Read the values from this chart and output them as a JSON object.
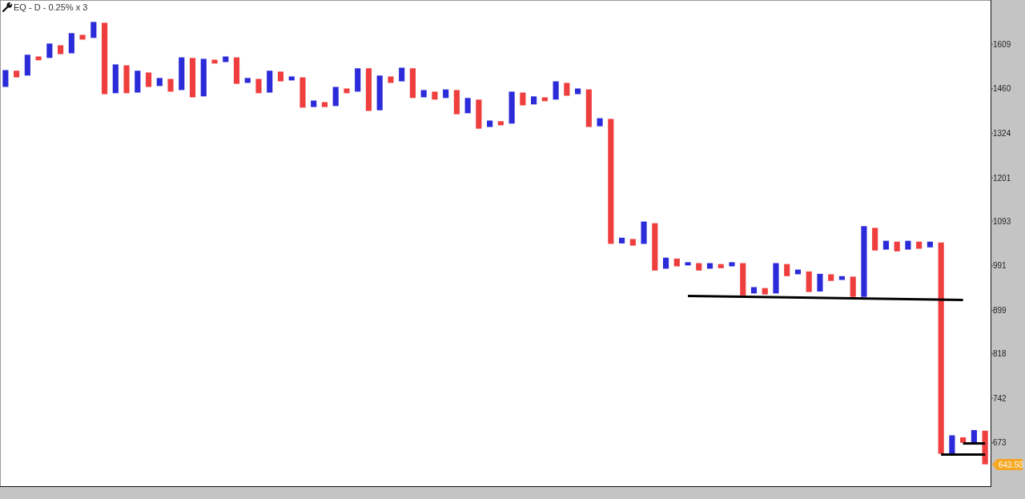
{
  "chart_data": {
    "type": "bar",
    "title": "EQ - D - 0.25% x 3",
    "categories": [
      null,
      null,
      null,
      null,
      null,
      null,
      null,
      null,
      null,
      null,
      null,
      null,
      null,
      null,
      null,
      null,
      null,
      null,
      null,
      null,
      null,
      null,
      null,
      null,
      null,
      null,
      null,
      null,
      null,
      null,
      null,
      null,
      null,
      null,
      null,
      null,
      null,
      null,
      null,
      null,
      null,
      null,
      null,
      null,
      null,
      null,
      null,
      null,
      null,
      null,
      null,
      null,
      null,
      null,
      null,
      null,
      null,
      null,
      null,
      null,
      null,
      null,
      null,
      null,
      null,
      null,
      null,
      null,
      null,
      null,
      null,
      null,
      null,
      null,
      null,
      null,
      null,
      null,
      null,
      null,
      null,
      null,
      null,
      null,
      null,
      null,
      null,
      null,
      null,
      null
    ],
    "series": [
      {
        "values": [
          55,
          22,
          70,
          13,
          50,
          31,
          71,
          17,
          58,
          244,
          94,
          91,
          71,
          47,
          26,
          41,
          108,
          129,
          123,
          13,
          19,
          88,
          16,
          46,
          71,
          32,
          13,
          96,
          20,
          15,
          60,
          15,
          76,
          136,
          110,
          21,
          45,
          96,
          23,
          25,
          27,
          75,
          47,
          88,
          19,
          12,
          98,
          40,
          25,
          12,
          58,
          41,
          18,
          115,
          24,
          327,
          13,
          15,
          52,
          107,
          24,
          17,
          7,
          16,
          12,
          9,
          9,
          68,
          13,
          13,
          64,
          26,
          10,
          43,
          37,
          14,
          8,
          42,
          155,
          52,
          20,
          22,
          20,
          16,
          13,
          386,
          27,
          8,
          19,
          49
        ],
        "base": [
          1466,
          1497,
          1503,
          1554,
          1562,
          1575,
          1578,
          1626,
          1632,
          1443,
          1446,
          1446,
          1448,
          1466,
          1469,
          1451,
          1456,
          1433,
          1436,
          1543,
          1548,
          1476,
          1479,
          1446,
          1448,
          1484,
          1487,
          1401,
          1403,
          1403,
          1406,
          1446,
          1451,
          1391,
          1393,
          1479,
          1484,
          1431,
          1433,
          1426,
          1431,
          1381,
          1384,
          1338,
          1343,
          1348,
          1353,
          1408,
          1411,
          1421,
          1426,
          1438,
          1443,
          1343,
          1345,
          1040,
          1041,
          1036,
          1040,
          981,
          985,
          990,
          992,
          981,
          985,
          986,
          990,
          929,
          933,
          931,
          933,
          969,
          973,
          936,
          937,
          959,
          961,
          926,
          926,
          1025,
          1027,
          1023,
          1027,
          1029,
          1032,
          657,
          657,
          673,
          673,
          642
        ],
        "colors": [
          "#2b2bd9",
          "#ef3e3e",
          "#2b2bd9",
          "#ef3e3e",
          "#2b2bd9",
          "#ef3e3e",
          "#2b2bd9",
          "#ef3e3e",
          "#2b2bd9",
          "#ef3e3e",
          "#2b2bd9",
          "#ef3e3e",
          "#2b2bd9",
          "#ef3e3e",
          "#2b2bd9",
          "#ef3e3e",
          "#2b2bd9",
          "#ef3e3e",
          "#2b2bd9",
          "#ef3e3e",
          "#2b2bd9",
          "#ef3e3e",
          "#2b2bd9",
          "#ef3e3e",
          "#2b2bd9",
          "#ef3e3e",
          "#2b2bd9",
          "#ef3e3e",
          "#2b2bd9",
          "#ef3e3e",
          "#2b2bd9",
          "#ef3e3e",
          "#2b2bd9",
          "#ef3e3e",
          "#2b2bd9",
          "#ef3e3e",
          "#2b2bd9",
          "#ef3e3e",
          "#2b2bd9",
          "#ef3e3e",
          "#2b2bd9",
          "#ef3e3e",
          "#2b2bd9",
          "#ef3e3e",
          "#2b2bd9",
          "#ef3e3e",
          "#2b2bd9",
          "#ef3e3e",
          "#2b2bd9",
          "#ef3e3e",
          "#2b2bd9",
          "#ef3e3e",
          "#2b2bd9",
          "#ef3e3e",
          "#2b2bd9",
          "#ef3e3e",
          "#2b2bd9",
          "#ef3e3e",
          "#2b2bd9",
          "#ef3e3e",
          "#2b2bd9",
          "#ef3e3e",
          "#2b2bd9",
          "#ef3e3e",
          "#2b2bd9",
          "#ef3e3e",
          "#2b2bd9",
          "#ef3e3e",
          "#2b2bd9",
          "#ef3e3e",
          "#2b2bd9",
          "#ef3e3e",
          "#2b2bd9",
          "#ef3e3e",
          "#2b2bd9",
          "#ef3e3e",
          "#2b2bd9",
          "#ef3e3e",
          "#2b2bd9",
          "#ef3e3e",
          "#2b2bd9",
          "#ef3e3e",
          "#2b2bd9",
          "#ef3e3e",
          "#2b2bd9",
          "#ef3e3e",
          "#2b2bd9",
          "#ef3e3e",
          "#2b2bd9",
          "#ef3e3e"
        ]
      },
      {
        "type": "line",
        "color": "#000000",
        "values": [
          null,
          null,
          null,
          null,
          null,
          null,
          null,
          null,
          null,
          null,
          null,
          null,
          null,
          null,
          null,
          null,
          null,
          null,
          null,
          null,
          null,
          null,
          null,
          null,
          null,
          null,
          null,
          null,
          null,
          null,
          null,
          null,
          null,
          null,
          null,
          null,
          null,
          null,
          null,
          null,
          null,
          null,
          null,
          null,
          null,
          null,
          null,
          null,
          null,
          null,
          null,
          null,
          null,
          null,
          null,
          null,
          null,
          null,
          null,
          null,
          null,
          null,
          928,
          null,
          null,
          null,
          null,
          null,
          null,
          null,
          null,
          null,
          null,
          null,
          null,
          null,
          null,
          null,
          null,
          null,
          null,
          null,
          null,
          null,
          null,
          null,
          null,
          920,
          null,
          null
        ]
      },
      {
        "type": "line",
        "color": "#000000",
        "values": [
          null,
          null,
          null,
          null,
          null,
          null,
          null,
          null,
          null,
          null,
          null,
          null,
          null,
          null,
          null,
          null,
          null,
          null,
          null,
          null,
          null,
          null,
          null,
          null,
          null,
          null,
          null,
          null,
          null,
          null,
          null,
          null,
          null,
          null,
          null,
          null,
          null,
          null,
          null,
          null,
          null,
          null,
          null,
          null,
          null,
          null,
          null,
          null,
          null,
          null,
          null,
          null,
          null,
          null,
          null,
          null,
          null,
          null,
          null,
          null,
          null,
          null,
          null,
          null,
          null,
          null,
          null,
          null,
          null,
          null,
          null,
          null,
          null,
          null,
          null,
          null,
          null,
          null,
          null,
          null,
          null,
          null,
          null,
          null,
          null,
          656,
          null,
          null,
          null,
          656
        ]
      },
      {
        "type": "line",
        "color": "#000000",
        "values": [
          null,
          null,
          null,
          null,
          null,
          null,
          null,
          null,
          null,
          null,
          null,
          null,
          null,
          null,
          null,
          null,
          null,
          null,
          null,
          null,
          null,
          null,
          null,
          null,
          null,
          null,
          null,
          null,
          null,
          null,
          null,
          null,
          null,
          null,
          null,
          null,
          null,
          null,
          null,
          null,
          null,
          null,
          null,
          null,
          null,
          null,
          null,
          null,
          null,
          null,
          null,
          null,
          null,
          null,
          null,
          null,
          null,
          null,
          null,
          null,
          null,
          null,
          null,
          null,
          null,
          null,
          null,
          null,
          null,
          null,
          null,
          null,
          null,
          null,
          null,
          null,
          null,
          null,
          null,
          null,
          null,
          null,
          null,
          null,
          null,
          null,
          null,
          672,
          null,
          672
        ]
      }
    ],
    "log": "y",
    "ylim": [
      612,
      1770
    ],
    "yticks": [
      673,
      742,
      818,
      899,
      991,
      1093,
      1201,
      1324,
      1460,
      1609
    ],
    "tick_labels": "y",
    "annotations": [
      "643.50"
    ]
  }
}
